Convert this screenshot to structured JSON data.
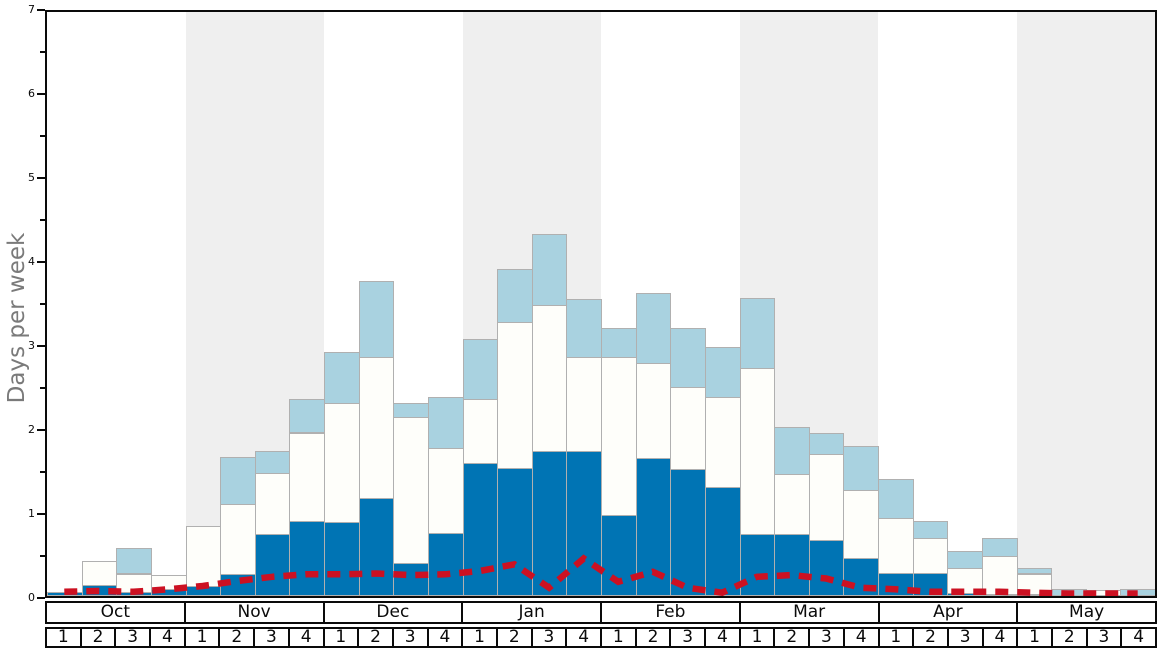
{
  "chart_data": {
    "type": "bar",
    "subtype": "stacked-bars-with-dashed-line-overlay",
    "title": "",
    "xlabel": "",
    "ylabel": "Days per week",
    "ylim": [
      0,
      7
    ],
    "y_ticks": [
      0,
      1,
      2,
      3,
      4,
      5,
      6,
      7
    ],
    "y_minor_tick_step": 0.5,
    "grid": false,
    "legend": "none",
    "months": [
      {
        "label": "Oct",
        "shaded": false
      },
      {
        "label": "Nov",
        "shaded": true
      },
      {
        "label": "Dec",
        "shaded": false
      },
      {
        "label": "Jan",
        "shaded": true
      },
      {
        "label": "Feb",
        "shaded": false
      },
      {
        "label": "Mar",
        "shaded": true
      },
      {
        "label": "Apr",
        "shaded": false
      },
      {
        "label": "May",
        "shaded": true
      }
    ],
    "week_labels": [
      "1",
      "2",
      "3",
      "4"
    ],
    "categories": [
      "Oct-1",
      "Oct-2",
      "Oct-3",
      "Oct-4",
      "Nov-1",
      "Nov-2",
      "Nov-3",
      "Nov-4",
      "Dec-1",
      "Dec-2",
      "Dec-3",
      "Dec-4",
      "Jan-1",
      "Jan-2",
      "Jan-3",
      "Jan-4",
      "Feb-1",
      "Feb-2",
      "Feb-3",
      "Feb-4",
      "Mar-1",
      "Mar-2",
      "Mar-3",
      "Mar-4",
      "Apr-1",
      "Apr-2",
      "Apr-3",
      "Apr-4",
      "May-1",
      "May-2",
      "May-3",
      "May-4"
    ],
    "series": [
      {
        "name": "dark-blue",
        "color": "#0074b4",
        "values": [
          0.05,
          0.13,
          0.05,
          0.08,
          0.12,
          0.26,
          0.74,
          0.9,
          0.89,
          1.17,
          0.39,
          0.76,
          1.6,
          1.53,
          1.74,
          1.74,
          0.97,
          1.66,
          1.52,
          1.31,
          0.74,
          0.74,
          0.67,
          0.45,
          0.27,
          0.27,
          0.04,
          0.03,
          0.02,
          0.0,
          0.0,
          0.0
        ]
      },
      {
        "name": "white",
        "color": "#fefefa",
        "values": [
          0.0,
          0.29,
          0.22,
          0.17,
          0.72,
          0.84,
          0.74,
          1.06,
          1.42,
          1.69,
          1.76,
          1.01,
          0.76,
          1.76,
          1.75,
          1.13,
          1.9,
          1.13,
          0.99,
          1.07,
          1.99,
          0.72,
          1.03,
          0.82,
          0.66,
          0.42,
          0.29,
          0.45,
          0.25,
          0.0,
          0.07,
          0.0
        ]
      },
      {
        "name": "light-blue",
        "color": "#a9d2e0",
        "values": [
          0.0,
          0.0,
          0.3,
          0.0,
          0.0,
          0.57,
          0.26,
          0.4,
          0.61,
          0.92,
          0.16,
          0.61,
          0.72,
          0.63,
          0.85,
          0.69,
          0.34,
          0.84,
          0.7,
          0.61,
          0.84,
          0.56,
          0.25,
          0.53,
          0.47,
          0.21,
          0.21,
          0.21,
          0.07,
          0.08,
          0.0,
          0.08
        ]
      }
    ],
    "overlay_line": {
      "name": "red-dashed",
      "color": "#cc1122",
      "style": "dashed",
      "values": [
        0.05,
        0.06,
        0.05,
        0.08,
        0.12,
        0.18,
        0.23,
        0.26,
        0.26,
        0.27,
        0.25,
        0.26,
        0.3,
        0.38,
        0.1,
        0.45,
        0.17,
        0.29,
        0.1,
        0.04,
        0.23,
        0.25,
        0.21,
        0.1,
        0.08,
        0.05,
        0.05,
        0.05,
        0.04,
        0.03,
        0.03,
        0.03
      ]
    },
    "colors": {
      "shaded_band": "#efefef",
      "bar_outline": "#b0b0b0",
      "axis": "#0a0a0a",
      "y_title_text": "#7a7a7a"
    }
  }
}
